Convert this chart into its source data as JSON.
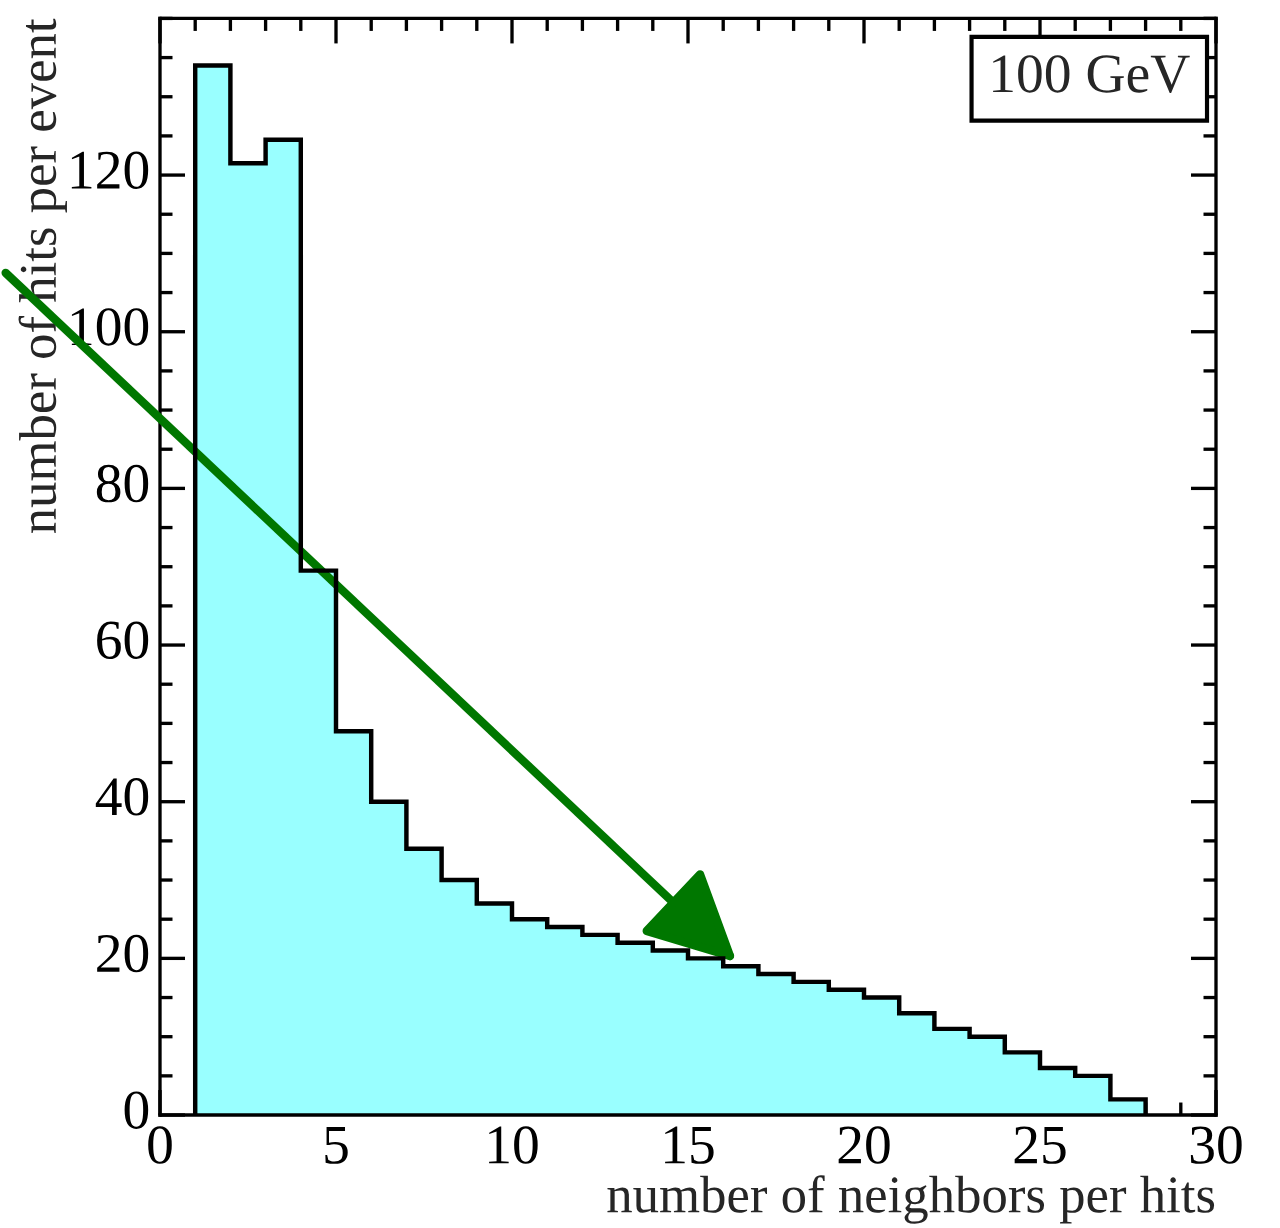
{
  "chart_data": {
    "type": "histogram",
    "xlabel": "number of neighbors per hits",
    "ylabel": "number of hits per event",
    "annotations": [
      "100 GeV"
    ],
    "bins": [
      1,
      2,
      3,
      4,
      5,
      6,
      7,
      8,
      9,
      10,
      11,
      12,
      13,
      14,
      15,
      16,
      17,
      18,
      19,
      20,
      21,
      22,
      23,
      24,
      25,
      26,
      27,
      28
    ],
    "values": [
      134,
      121.5,
      124.5,
      69.5,
      49,
      40,
      34,
      30,
      27,
      25,
      24,
      23,
      22,
      21,
      20,
      19,
      18,
      17,
      16,
      15,
      13,
      11,
      10,
      8,
      6,
      5,
      2
    ],
    "color": "#99ffff",
    "xlim": [
      0,
      30
    ],
    "xticks": [
      0,
      5,
      10,
      15,
      20,
      25,
      30
    ],
    "ylim": [
      0,
      140
    ],
    "yticks": [
      0,
      20,
      40,
      60,
      80,
      100,
      120
    ],
    "grid": false,
    "legend": false
  }
}
